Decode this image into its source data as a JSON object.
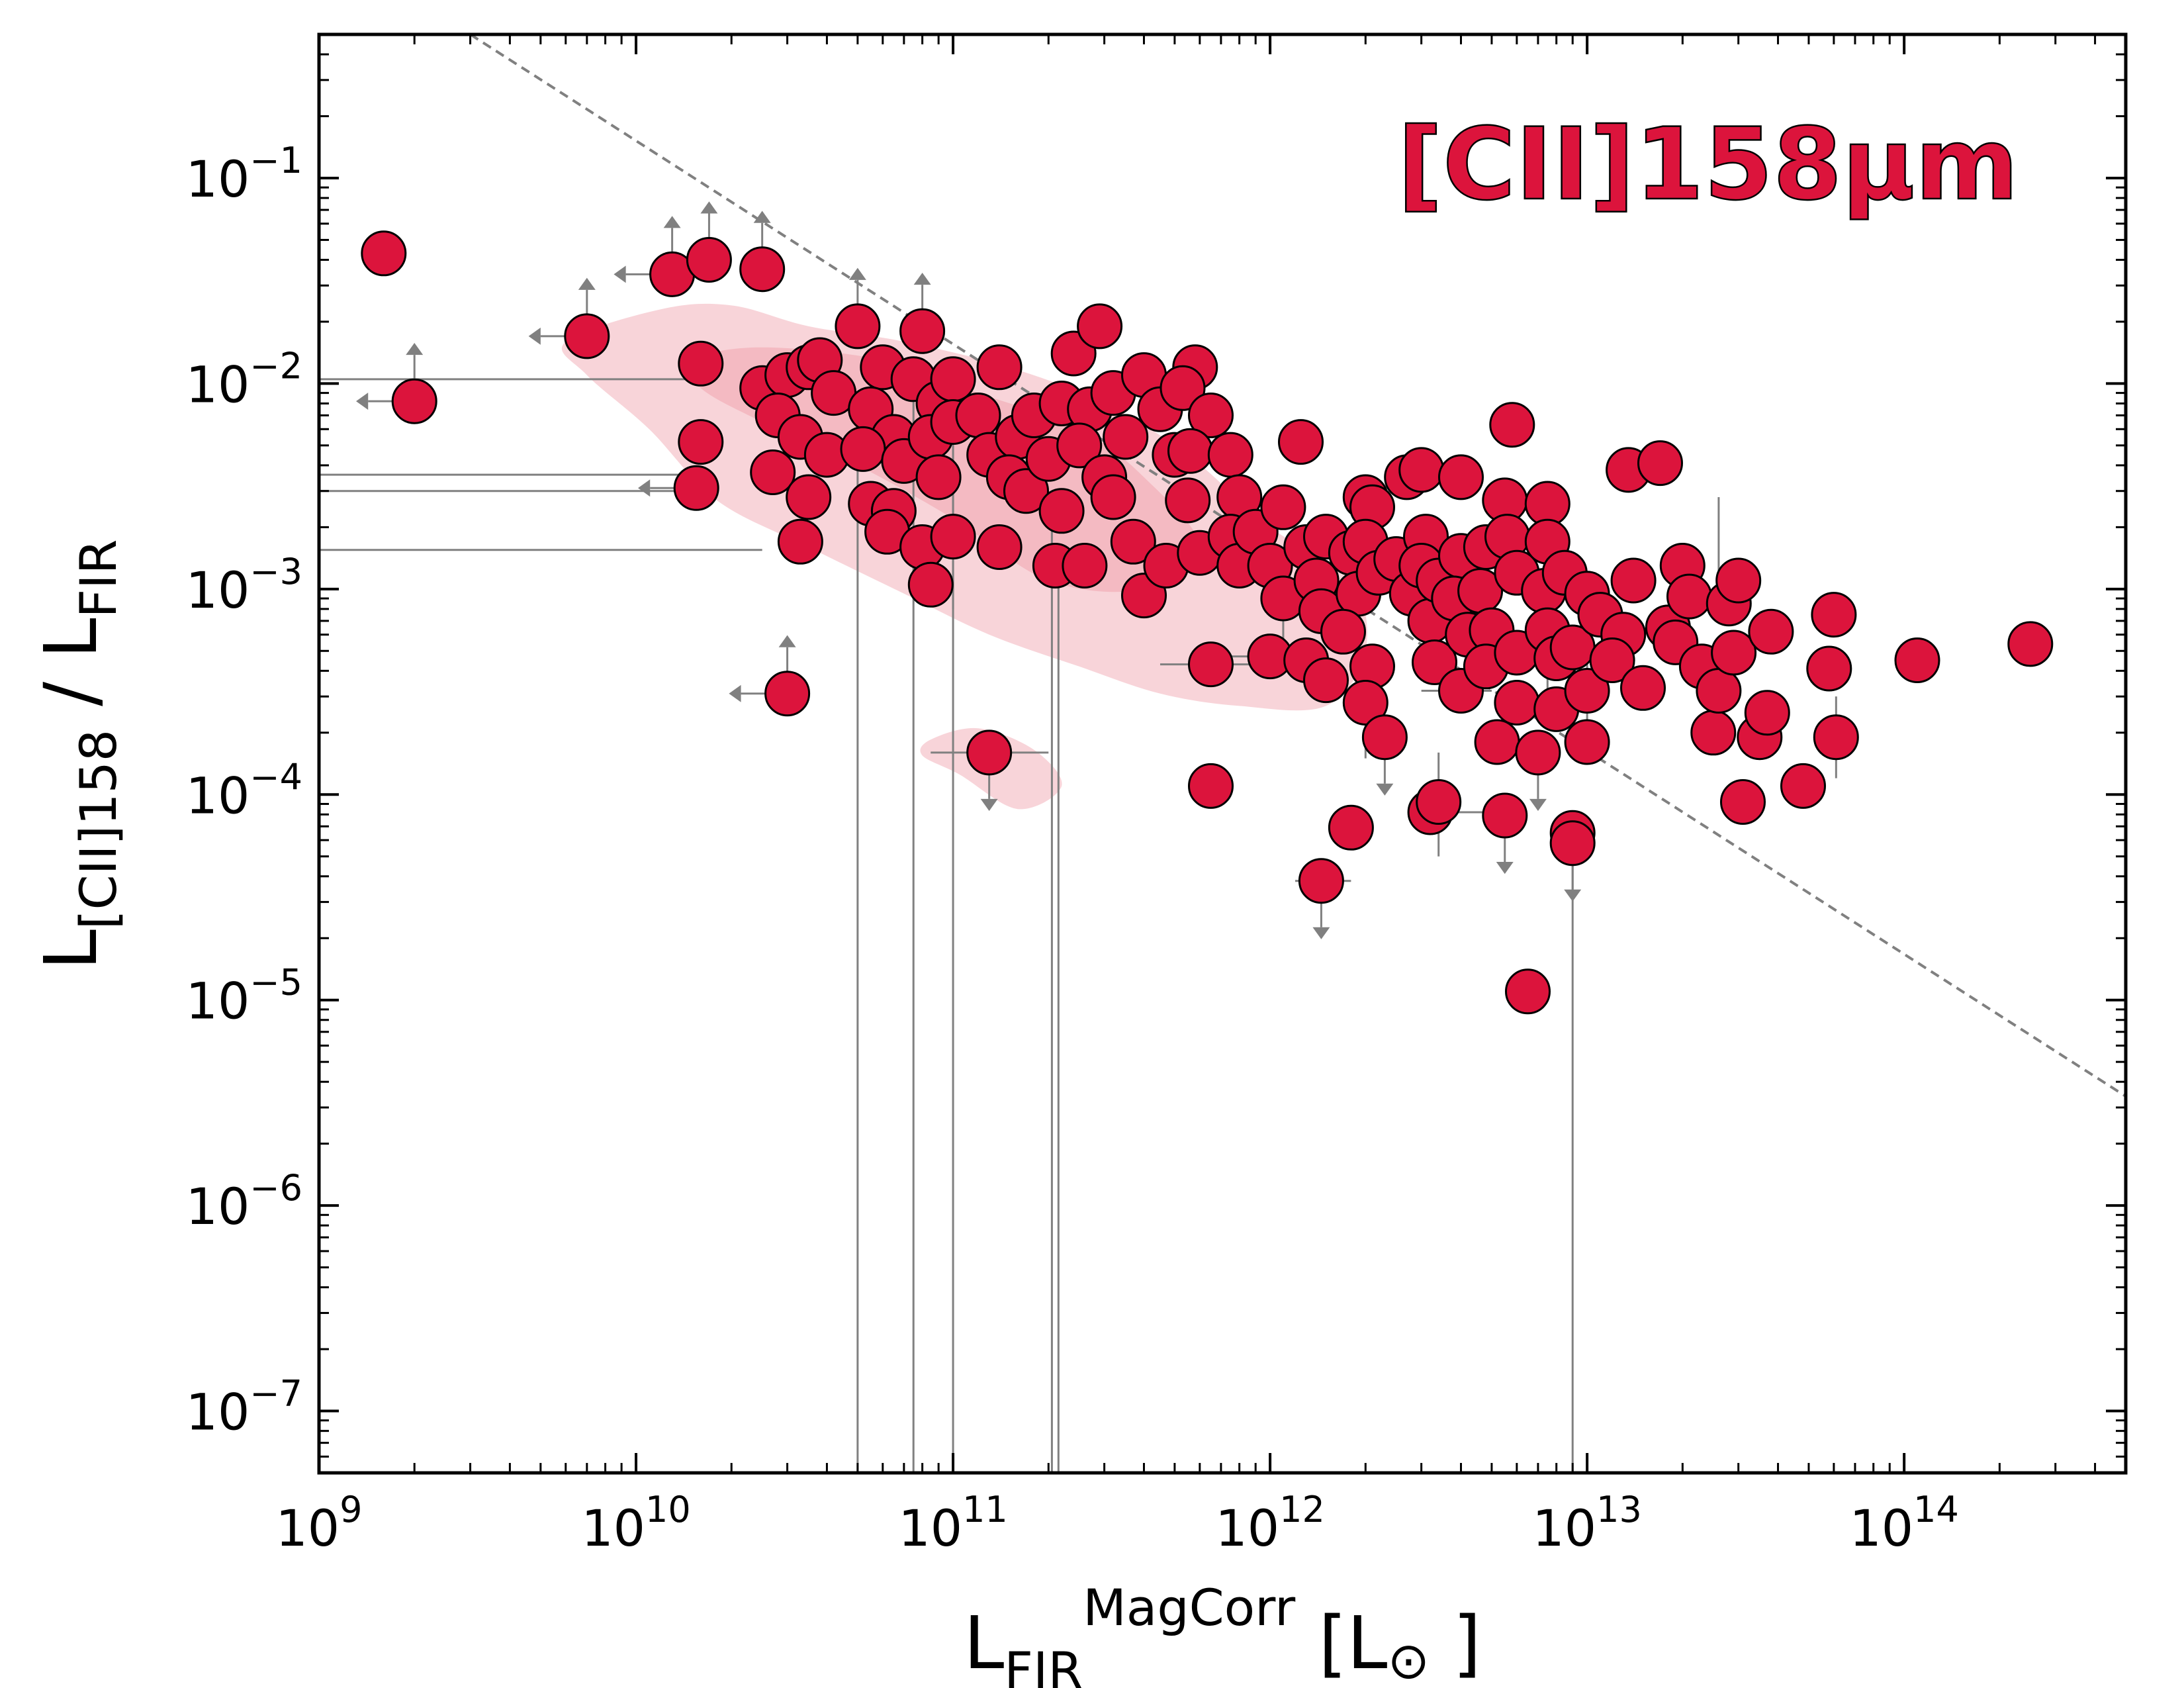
{
  "chart_data": {
    "type": "scatter",
    "xscale": "log",
    "yscale": "log",
    "xlim": [
      1000000000.0,
      500000000000000.0
    ],
    "ylim": [
      5e-08,
      0.5
    ],
    "grid": false,
    "x_ticks": [
      {
        "value": 1000000000.0,
        "base": "10",
        "exp": "9"
      },
      {
        "value": 10000000000.0,
        "base": "10",
        "exp": "10"
      },
      {
        "value": 100000000000.0,
        "base": "10",
        "exp": "11"
      },
      {
        "value": 1000000000000.0,
        "base": "10",
        "exp": "12"
      },
      {
        "value": 10000000000000.0,
        "base": "10",
        "exp": "13"
      },
      {
        "value": 100000000000000.0,
        "base": "10",
        "exp": "14"
      }
    ],
    "y_ticks": [
      {
        "value": 1e-07,
        "base": "10",
        "exp": "−7"
      },
      {
        "value": 1e-06,
        "base": "10",
        "exp": "−6"
      },
      {
        "value": 1e-05,
        "base": "10",
        "exp": "−5"
      },
      {
        "value": 0.0001,
        "base": "10",
        "exp": "−4"
      },
      {
        "value": 0.001,
        "base": "10",
        "exp": "−3"
      },
      {
        "value": 0.01,
        "base": "10",
        "exp": "−2"
      },
      {
        "value": 0.1,
        "base": "10",
        "exp": "−1"
      }
    ],
    "xlabel": {
      "main": "L",
      "sub": "FIR",
      "sup": "MagCorr",
      "unit_open": " [L",
      "unit_symbol": "⊙",
      "unit_close": " ]"
    },
    "ylabel": {
      "main": "L",
      "sub": "[CII]158",
      "middle": " / L",
      "sub2": "FIR"
    },
    "annotation": {
      "text": "[CII]158μm",
      "color": "#dc143c"
    },
    "marker_color": "#dc143c",
    "errorbar_color": "#808080",
    "contour_colors": [
      "#f7cdd2",
      "#f2b3bb"
    ],
    "reference_line": {
      "x": [
        3000000000.0,
        500000000000000.0
      ],
      "y": [
        0.5,
        3.4e-06
      ],
      "style": "dashed",
      "color": "#808080"
    },
    "contours": {
      "outer": [
        [
          6000000000.0,
          0.016
        ],
        [
          12000000000.0,
          0.023
        ],
        [
          20000000000.0,
          0.024
        ],
        [
          35000000000.0,
          0.019
        ],
        [
          70000000000.0,
          0.016
        ],
        [
          150000000000.0,
          0.012
        ],
        [
          300000000000.0,
          0.008
        ],
        [
          550000000000.0,
          0.0045
        ],
        [
          1000000000000.0,
          0.002
        ],
        [
          1800000000000.0,
          0.0011
        ],
        [
          2000000000000.0,
          0.0005
        ],
        [
          1500000000000.0,
          0.00027
        ],
        [
          800000000000.0,
          0.00027
        ],
        [
          450000000000.0,
          0.00031
        ],
        [
          250000000000.0,
          0.00042
        ],
        [
          130000000000.0,
          0.0006
        ],
        [
          70000000000.0,
          0.00095
        ],
        [
          35000000000.0,
          0.0016
        ],
        [
          18000000000.0,
          0.0027
        ],
        [
          11000000000.0,
          0.006
        ],
        [
          7000000000.0,
          0.011
        ]
      ],
      "inner": [
        [
          15000000000.0,
          0.013
        ],
        [
          25000000000.0,
          0.015
        ],
        [
          60000000000.0,
          0.013
        ],
        [
          120000000000.0,
          0.009
        ],
        [
          250000000000.0,
          0.006
        ],
        [
          400000000000.0,
          0.0035
        ],
        [
          600000000000.0,
          0.0016
        ],
        [
          400000000000.0,
          0.001
        ],
        [
          200000000000.0,
          0.0011
        ],
        [
          100000000000.0,
          0.0022
        ],
        [
          50000000000.0,
          0.004
        ],
        [
          25000000000.0,
          0.0065
        ],
        [
          16000000000.0,
          0.0095
        ]
      ],
      "island": [
        [
          85000000000.0,
          0.000185
        ],
        [
          120000000000.0,
          0.00021
        ],
        [
          180000000000.0,
          0.000165
        ],
        [
          220000000000.0,
          0.00011
        ],
        [
          160000000000.0,
          8.5e-05
        ],
        [
          105000000000.0,
          0.000125
        ],
        [
          80000000000.0,
          0.000155
        ]
      ]
    },
    "points": [
      [
        1600000000.0,
        0.043
      ],
      [
        2000000000.0,
        0.0082
      ],
      [
        7000000000.0,
        0.017
      ],
      [
        13000000000.0,
        0.034
      ],
      [
        17000000000.0,
        0.04
      ],
      [
        25000000000.0,
        0.036
      ],
      [
        16000000000.0,
        0.0125
      ],
      [
        16000000000.0,
        0.0052
      ],
      [
        15500000000.0,
        0.0031
      ],
      [
        30000000000.0,
        0.00031
      ],
      [
        25000000000.0,
        0.0095
      ],
      [
        30000000000.0,
        0.011
      ],
      [
        35000000000.0,
        0.012
      ],
      [
        38000000000.0,
        0.013
      ],
      [
        28000000000.0,
        0.007
      ],
      [
        33000000000.0,
        0.0055
      ],
      [
        40000000000.0,
        0.0045
      ],
      [
        27000000000.0,
        0.0037
      ],
      [
        35000000000.0,
        0.0028
      ],
      [
        33000000000.0,
        0.0017
      ],
      [
        42000000000.0,
        0.009
      ],
      [
        50000000000.0,
        0.019
      ],
      [
        60000000000.0,
        0.012
      ],
      [
        55000000000.0,
        0.0075
      ],
      [
        65000000000.0,
        0.0055
      ],
      [
        52000000000.0,
        0.0048
      ],
      [
        70000000000.0,
        0.0042
      ],
      [
        55000000000.0,
        0.0026
      ],
      [
        65000000000.0,
        0.0024
      ],
      [
        62000000000.0,
        0.0019
      ],
      [
        75000000000.0,
        0.0105
      ],
      [
        80000000000.0,
        0.018
      ],
      [
        90000000000.0,
        0.008
      ],
      [
        100000000000.0,
        0.0105
      ],
      [
        85000000000.0,
        0.0055
      ],
      [
        100000000000.0,
        0.0065
      ],
      [
        90000000000.0,
        0.0035
      ],
      [
        80000000000.0,
        0.0016
      ],
      [
        85000000000.0,
        0.00105
      ],
      [
        100000000000.0,
        0.0018
      ],
      [
        120000000000.0,
        0.007
      ],
      [
        140000000000.0,
        0.012
      ],
      [
        130000000000.0,
        0.0045
      ],
      [
        160000000000.0,
        0.0055
      ],
      [
        180000000000.0,
        0.007
      ],
      [
        150000000000.0,
        0.0035
      ],
      [
        170000000000.0,
        0.003
      ],
      [
        200000000000.0,
        0.0043
      ],
      [
        140000000000.0,
        0.0016
      ],
      [
        130000000000.0,
        0.00016
      ],
      [
        240000000000.0,
        0.014
      ],
      [
        290000000000.0,
        0.019
      ],
      [
        220000000000.0,
        0.008
      ],
      [
        270000000000.0,
        0.0075
      ],
      [
        320000000000.0,
        0.009
      ],
      [
        250000000000.0,
        0.005
      ],
      [
        300000000000.0,
        0.0035
      ],
      [
        220000000000.0,
        0.0024
      ],
      [
        210000000000.0,
        0.0013
      ],
      [
        260000000000.0,
        0.0013
      ],
      [
        350000000000.0,
        0.0055
      ],
      [
        320000000000.0,
        0.0028
      ],
      [
        370000000000.0,
        0.0017
      ],
      [
        400000000000.0,
        0.011
      ],
      [
        450000000000.0,
        0.0075
      ],
      [
        500000000000.0,
        0.0045
      ],
      [
        400000000000.0,
        0.00093
      ],
      [
        470000000000.0,
        0.0013
      ],
      [
        580000000000.0,
        0.012
      ],
      [
        530000000000.0,
        0.0095
      ],
      [
        650000000000.0,
        0.007
      ],
      [
        560000000000.0,
        0.0047
      ],
      [
        550000000000.0,
        0.0027
      ],
      [
        600000000000.0,
        0.0015
      ],
      [
        650000000000.0,
        0.00043
      ],
      [
        650000000000.0,
        0.00011
      ],
      [
        750000000000.0,
        0.0045
      ],
      [
        800000000000.0,
        0.0028
      ],
      [
        750000000000.0,
        0.0018
      ],
      [
        800000000000.0,
        0.0013
      ],
      [
        900000000000.0,
        0.0019
      ],
      [
        1100000000000.0,
        0.0025
      ],
      [
        1000000000000.0,
        0.0013
      ],
      [
        1100000000000.0,
        0.0009
      ],
      [
        1000000000000.0,
        0.00047
      ],
      [
        1250000000000.0,
        0.0052
      ],
      [
        1300000000000.0,
        0.0016
      ],
      [
        1500000000000.0,
        0.0018
      ],
      [
        1400000000000.0,
        0.0011
      ],
      [
        1450000000000.0,
        0.00078
      ],
      [
        1300000000000.0,
        0.00045
      ],
      [
        1500000000000.0,
        0.00036
      ],
      [
        1450000000000.0,
        3.8e-05
      ],
      [
        1800000000000.0,
        0.0015
      ],
      [
        1900000000000.0,
        0.00095
      ],
      [
        1700000000000.0,
        0.00062
      ],
      [
        1800000000000.0,
        6.9e-05
      ],
      [
        2000000000000.0,
        0.0028
      ],
      [
        2100000000000.0,
        0.0025
      ],
      [
        2000000000000.0,
        0.0017
      ],
      [
        2200000000000.0,
        0.0012
      ],
      [
        2100000000000.0,
        0.00042
      ],
      [
        2000000000000.0,
        0.00028
      ],
      [
        2300000000000.0,
        0.00019
      ],
      [
        2500000000000.0,
        0.0014
      ],
      [
        2700000000000.0,
        0.0035
      ],
      [
        2800000000000.0,
        0.00095
      ],
      [
        3000000000000.0,
        0.0038
      ],
      [
        3100000000000.0,
        0.0018
      ],
      [
        3000000000000.0,
        0.0013
      ],
      [
        3200000000000.0,
        0.0007
      ],
      [
        3400000000000.0,
        0.0011
      ],
      [
        3300000000000.0,
        0.00044
      ],
      [
        3200000000000.0,
        8.2e-05
      ],
      [
        3400000000000.0,
        9.2e-05
      ],
      [
        4000000000000.0,
        0.0035
      ],
      [
        4000000000000.0,
        0.00145
      ],
      [
        3800000000000.0,
        0.0009
      ],
      [
        4200000000000.0,
        0.0006
      ],
      [
        4000000000000.0,
        0.00032
      ],
      [
        4800000000000.0,
        0.0016
      ],
      [
        4600000000000.0,
        0.00098
      ],
      [
        5000000000000.0,
        0.00063
      ],
      [
        4800000000000.0,
        0.00042
      ],
      [
        5200000000000.0,
        0.00018
      ],
      [
        5500000000000.0,
        7.9e-05
      ],
      [
        5500000000000.0,
        0.0027
      ],
      [
        5800000000000.0,
        0.0063
      ],
      [
        5600000000000.0,
        0.0018
      ],
      [
        6000000000000.0,
        0.0012
      ],
      [
        6000000000000.0,
        0.00049
      ],
      [
        6000000000000.0,
        0.00028
      ],
      [
        6500000000000.0,
        1.1e-05
      ],
      [
        7000000000000.0,
        0.00016
      ],
      [
        7500000000000.0,
        0.0026
      ],
      [
        7500000000000.0,
        0.0017
      ],
      [
        7300000000000.0,
        0.00098
      ],
      [
        7500000000000.0,
        0.00063
      ],
      [
        8000000000000.0,
        0.00046
      ],
      [
        8000000000000.0,
        0.00026
      ],
      [
        8500000000000.0,
        0.0012
      ],
      [
        9000000000000.0,
        0.00052
      ],
      [
        9000000000000.0,
        6.5e-05
      ],
      [
        9000000000000.0,
        5.8e-05
      ],
      [
        10000000000000.0,
        0.00095
      ],
      [
        10000000000000.0,
        0.00032
      ],
      [
        10000000000000.0,
        0.00018
      ],
      [
        11000000000000.0,
        0.00075
      ],
      [
        13000000000000.0,
        0.0006
      ],
      [
        12000000000000.0,
        0.00045
      ],
      [
        13500000000000.0,
        0.0038
      ],
      [
        14000000000000.0,
        0.0011
      ],
      [
        15000000000000.0,
        0.00033
      ],
      [
        17000000000000.0,
        0.0041
      ],
      [
        18000000000000.0,
        0.00065
      ],
      [
        20000000000000.0,
        0.0013
      ],
      [
        21000000000000.0,
        0.00092
      ],
      [
        19000000000000.0,
        0.00055
      ],
      [
        23000000000000.0,
        0.00042
      ],
      [
        25000000000000.0,
        0.0002
      ],
      [
        26000000000000.0,
        0.00032
      ],
      [
        28000000000000.0,
        0.00085
      ],
      [
        30000000000000.0,
        0.0011
      ],
      [
        29000000000000.0,
        0.00049
      ],
      [
        31000000000000.0,
        9.2e-05
      ],
      [
        35000000000000.0,
        0.00019
      ],
      [
        37000000000000.0,
        0.00025
      ],
      [
        38000000000000.0,
        0.00062
      ],
      [
        48000000000000.0,
        0.00011
      ],
      [
        58000000000000.0,
        0.00041
      ],
      [
        60000000000000.0,
        0.00075
      ],
      [
        61000000000000.0,
        0.00019
      ],
      [
        110000000000000.0,
        0.00045
      ],
      [
        250000000000000.0,
        0.00054
      ]
    ],
    "upper_limits_x": [
      [
        2000000000.0,
        0.0082
      ],
      [
        7000000000.0,
        0.017
      ],
      [
        13000000000.0,
        0.034
      ],
      [
        15500000000.0,
        0.0031
      ],
      [
        30000000000.0,
        0.00031
      ]
    ],
    "lower_limits_y": [
      [
        2000000000.0,
        0.0082
      ],
      [
        7000000000.0,
        0.017
      ],
      [
        13000000000.0,
        0.034
      ],
      [
        17000000000.0,
        0.04
      ],
      [
        25000000000.0,
        0.036
      ],
      [
        30000000000.0,
        0.00031
      ],
      [
        50000000000.0,
        0.019
      ],
      [
        80000000000.0,
        0.018
      ]
    ],
    "upper_limits_y": [
      [
        130000000000.0,
        0.00016
      ],
      [
        1450000000000.0,
        3.8e-05
      ],
      [
        2300000000000.0,
        0.00019
      ],
      [
        5500000000000.0,
        7.9e-05
      ],
      [
        7000000000000.0,
        0.00016
      ],
      [
        9000000000000.0,
        5.8e-05
      ]
    ],
    "long_x_bars": [
      [
        1000000000.0,
        16000000000.0,
        0.0105
      ],
      [
        1000000000.0,
        16000000000.0,
        0.0036
      ],
      [
        1000000000.0,
        16000000000.0,
        0.003
      ],
      [
        1000000000.0,
        25000000000.0,
        0.00155
      ]
    ],
    "long_y_bars": [
      [
        50000000000.0,
        5e-08,
        0.0045
      ],
      [
        75000000000.0,
        5e-08,
        0.0105
      ],
      [
        100000000000.0,
        5e-08,
        0.0065
      ],
      [
        205000000000.0,
        5e-08,
        0.0024
      ],
      [
        215000000000.0,
        5e-08,
        0.0013
      ],
      [
        9000000000000.0,
        5e-08,
        6.5e-05
      ]
    ],
    "xerr_short": [
      [
        130000000000.0,
        0.00016,
        85000000000.0,
        200000000000.0
      ],
      [
        1450000000000.0,
        3.8e-05,
        1200000000000.0,
        1800000000000.0
      ],
      [
        3200000000000.0,
        8.2e-05,
        2800000000000.0,
        5000000000000.0
      ],
      [
        650000000000.0,
        0.00043,
        450000000000.0,
        900000000000.0
      ],
      [
        4000000000000.0,
        0.00032,
        3000000000000.0,
        5000000000000.0
      ],
      [
        3000000000000.0,
        0.0013,
        2000000000000.0,
        4000000000000.0
      ],
      [
        1000000000000.0,
        0.00047,
        700000000000.0,
        1400000000000.0
      ]
    ],
    "yerr_short": [
      [
        100000000000.0,
        0.0018,
        0.0008,
        0.0032
      ],
      [
        1100000000000.0,
        0.0009,
        0.0005,
        0.0016
      ],
      [
        2000000000000.0,
        0.00028,
        0.00015,
        0.0005
      ],
      [
        5000000000000.0,
        0.00063,
        0.00035,
        0.0011
      ],
      [
        7500000000000.0,
        0.00063,
        0.0003,
        0.0011
      ],
      [
        10000000000000.0,
        0.00032,
        0.00018,
        0.0006
      ],
      [
        3400000000000.0,
        9.2e-05,
        5e-05,
        0.00016
      ],
      [
        61000000000000.0,
        0.00019,
        0.00012,
        0.0003
      ],
      [
        26000000000000.0,
        0.0002,
        0.0012,
        0.0028
      ]
    ]
  }
}
